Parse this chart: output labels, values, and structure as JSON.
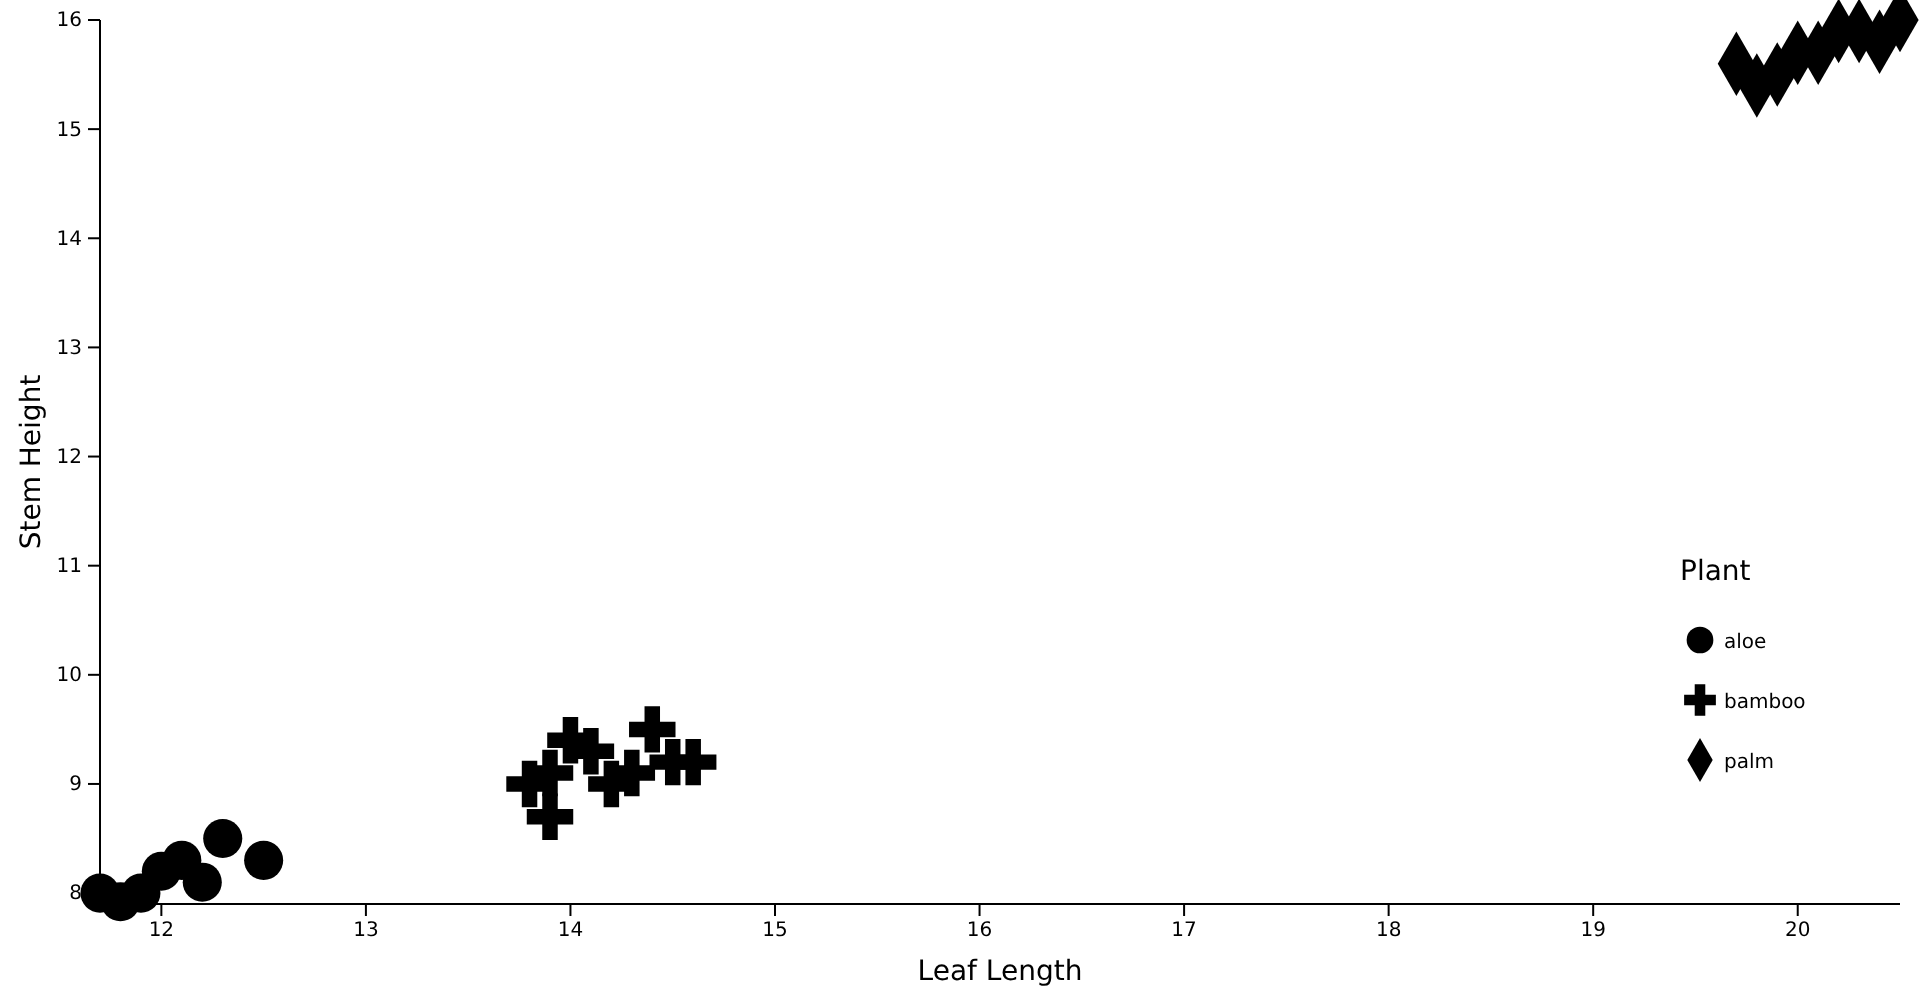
{
  "chart_data": {
    "type": "scatter",
    "xlabel": "Leaf Length",
    "ylabel": "Stem Height",
    "legend_title": "Plant",
    "legend": "right",
    "xlim": [
      11.7,
      20.5
    ],
    "xticks": [
      12,
      13,
      14,
      15,
      16,
      17,
      18,
      19,
      20
    ],
    "ylim": [
      7.9,
      16
    ],
    "yticks": [
      8,
      9,
      10,
      11,
      12,
      13,
      14,
      15,
      16
    ],
    "grid": false,
    "series": [
      {
        "name": "aloe",
        "color": "#000000",
        "marker": "circle",
        "x": [
          11.7,
          11.8,
          11.9,
          12.0,
          12.1,
          12.2,
          12.3,
          12.5
        ],
        "values": [
          8.0,
          7.92,
          8.0,
          8.2,
          8.3,
          8.1,
          8.5,
          8.3
        ]
      },
      {
        "name": "bamboo",
        "color": "#000000",
        "marker": "cross",
        "x": [
          13.8,
          13.9,
          13.9,
          14.0,
          14.1,
          14.2,
          14.3,
          14.4,
          14.5,
          14.6
        ],
        "values": [
          9.0,
          9.1,
          8.7,
          9.4,
          9.3,
          9.0,
          9.1,
          9.5,
          9.2,
          9.2
        ]
      },
      {
        "name": "palm",
        "color": "#000000",
        "marker": "diamond",
        "x": [
          19.7,
          19.8,
          19.9,
          20.0,
          20.1,
          20.2,
          20.3,
          20.4,
          20.5
        ],
        "values": [
          15.6,
          15.4,
          15.5,
          15.7,
          15.7,
          15.9,
          15.9,
          15.8,
          16.0
        ]
      }
    ]
  }
}
